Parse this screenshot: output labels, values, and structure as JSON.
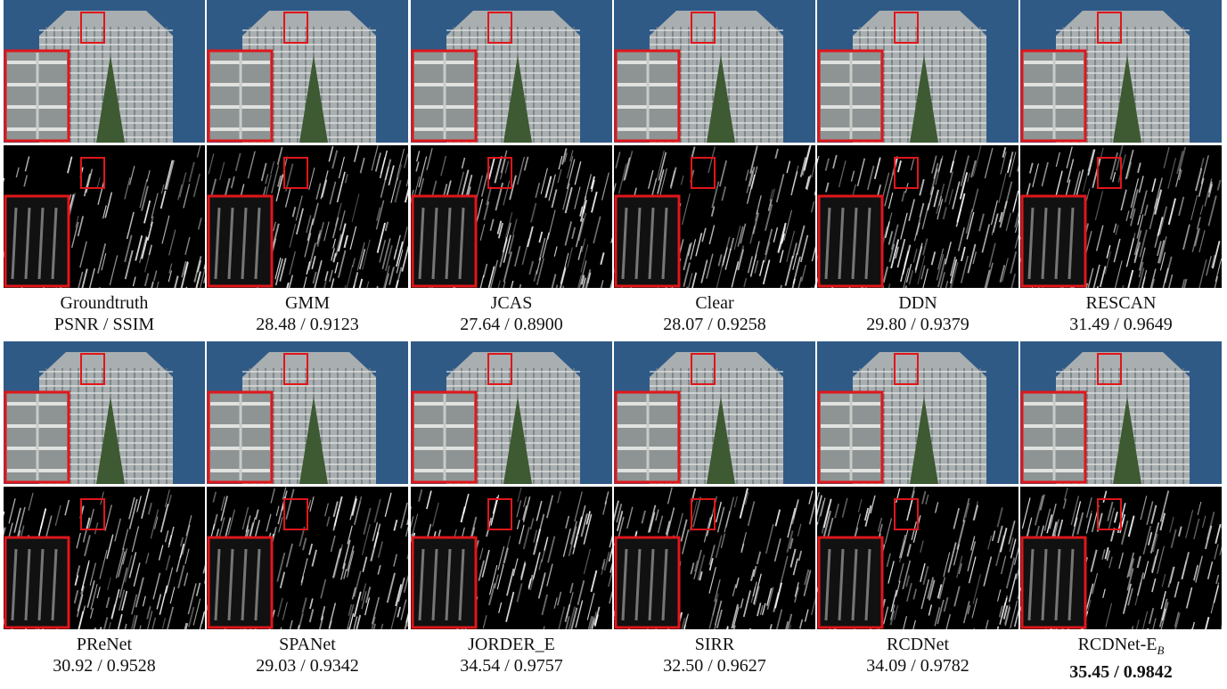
{
  "rows": [
    {
      "panels": [
        {
          "label": "Groundtruth",
          "metric": "PSNR / SSIM"
        },
        {
          "label": "GMM",
          "metric": "28.48 / 0.9123"
        },
        {
          "label": "JCAS",
          "metric": "27.64 / 0.8900"
        },
        {
          "label": "Clear",
          "metric": "28.07 / 0.9258"
        },
        {
          "label": "DDN",
          "metric": "29.80 / 0.9379"
        },
        {
          "label": "RESCAN",
          "metric": "31.49 / 0.9649"
        }
      ]
    },
    {
      "panels": [
        {
          "label": "PReNet",
          "metric": "30.92 / 0.9528"
        },
        {
          "label": "SPANet",
          "metric": "29.03 / 0.9342"
        },
        {
          "label": "JORDER_E",
          "metric": "34.54 / 0.9757"
        },
        {
          "label": "SIRR",
          "metric": "32.50 / 0.9627"
        },
        {
          "label": "RCDNet",
          "metric": "34.09 / 0.9782"
        },
        {
          "label": "RCDNet-E",
          "label_sub": "B",
          "metric": "35.45 / 0.9842"
        }
      ]
    }
  ]
}
